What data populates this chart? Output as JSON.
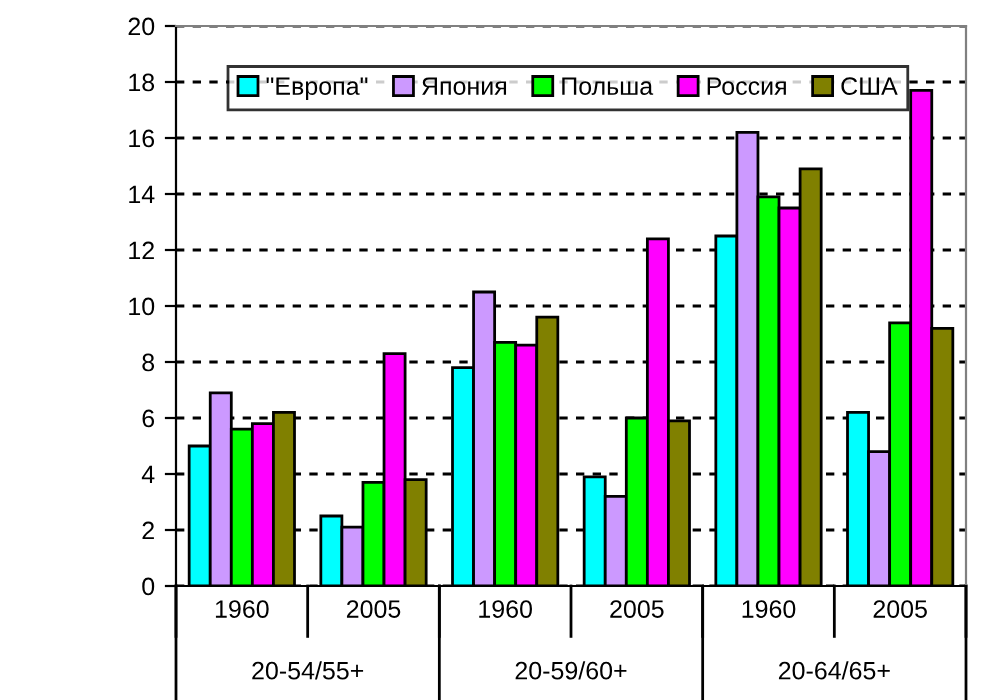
{
  "chart_data": {
    "type": "bar",
    "categories": [
      "1960",
      "2005",
      "1960",
      "2005",
      "1960",
      "2005"
    ],
    "annotations": [
      "20-54/55+",
      "20-59/60+",
      "20-64/65+"
    ],
    "series": [
      {
        "name": "\"Европа\"",
        "color": "#00ffff",
        "values": [
          5.0,
          2.5,
          7.8,
          3.9,
          12.5,
          6.2
        ]
      },
      {
        "name": "Япония",
        "color": "#cc99ff",
        "values": [
          6.9,
          2.1,
          10.5,
          3.2,
          16.2,
          4.8
        ]
      },
      {
        "name": "Польша",
        "color": "#00ff00",
        "values": [
          5.6,
          3.7,
          8.7,
          6.0,
          13.9,
          9.4
        ]
      },
      {
        "name": "Россия",
        "color": "#ff00ff",
        "values": [
          5.8,
          8.3,
          8.6,
          12.4,
          13.5,
          17.7
        ]
      },
      {
        "name": "США",
        "color": "#808000",
        "values": [
          6.2,
          3.8,
          9.6,
          5.9,
          14.9,
          9.2
        ]
      }
    ],
    "ylim": [
      0,
      20
    ],
    "yticks": [
      0,
      2,
      4,
      6,
      8,
      10,
      12,
      14,
      16,
      18,
      20
    ],
    "grid": "y",
    "legend": "top left"
  }
}
